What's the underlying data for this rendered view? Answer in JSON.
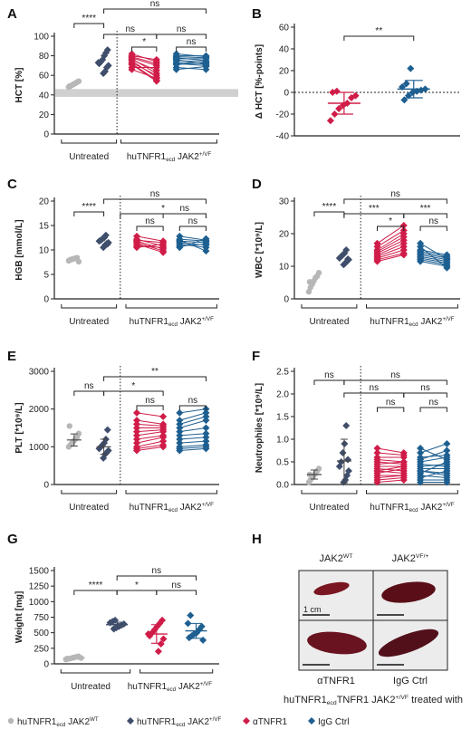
{
  "colors": {
    "gray": "#b7b7b7",
    "navy": "#3f4e6b",
    "red": "#d01c48",
    "blue": "#1e5f91",
    "shade": "#d0d0d0"
  },
  "chart_data": [
    {
      "panel": "A",
      "type": "scatter",
      "ylabel": "HCT [%]",
      "ylim": [
        0,
        100
      ],
      "yticks": [
        0,
        20,
        40,
        60,
        80,
        100
      ],
      "groups": [
        {
          "name": "huTNFR1ecd JAK2WT",
          "values": [
            48,
            49,
            50,
            51,
            52,
            53,
            54,
            49
          ]
        },
        {
          "name": "huTNFR1ecd JAK2+/VF",
          "values": [
            62,
            64,
            68,
            70,
            72,
            74,
            76,
            80,
            83,
            86,
            73
          ]
        }
      ],
      "paired": {
        "before": [
          80,
          79,
          78,
          77,
          75,
          73,
          72,
          71,
          68,
          66,
          82,
          76
        ],
        "red_after": [
          76,
          72,
          70,
          62,
          58,
          60,
          55,
          54,
          68,
          57,
          74,
          65
        ],
        "blue_after": [
          80,
          78,
          75,
          77,
          74,
          72,
          70,
          73,
          66,
          69,
          79,
          71
        ]
      },
      "reference_band": [
        38,
        46
      ],
      "significance": [
        "****",
        "ns",
        "ns",
        "ns",
        "*",
        "ns"
      ],
      "group_labels": [
        "Untreated",
        "huTNFR1",
        "ecd",
        "JAK2",
        "+/VF"
      ]
    },
    {
      "panel": "B",
      "type": "scatter",
      "ylabel": "Δ HCT [%-points]",
      "ylim": [
        -40,
        60
      ],
      "yticks": [
        -40,
        -20,
        0,
        20,
        40,
        60
      ],
      "groups": [
        {
          "name": "αTNFR1",
          "values": [
            -26,
            -20,
            -15,
            -12,
            -10,
            -5,
            -3,
            0,
            1
          ],
          "mean": -10,
          "sd": 10
        },
        {
          "name": "IgG Ctrl",
          "values": [
            -7,
            -3,
            0,
            1,
            2,
            3,
            5,
            8,
            22
          ],
          "mean": 3,
          "sd": 8
        }
      ],
      "significance": [
        "**"
      ]
    },
    {
      "panel": "C",
      "type": "scatter",
      "ylabel": "HGB [mmol/L]",
      "ylim": [
        0,
        20
      ],
      "yticks": [
        0,
        5,
        10,
        15,
        20
      ],
      "groups": [
        {
          "name": "huTNFR1ecd JAK2WT",
          "values": [
            7.8,
            8.0,
            8.1,
            8.2,
            8.3,
            8.4,
            7.6,
            7.9
          ]
        },
        {
          "name": "huTNFR1ecd JAK2+/VF",
          "values": [
            10.5,
            11.0,
            11.3,
            11.5,
            11.8,
            12.0,
            12.3,
            12.5,
            13.0,
            11.2
          ]
        }
      ],
      "paired": {
        "before": [
          12.8,
          12.2,
          11.8,
          11.5,
          11.2,
          10.8,
          10.5,
          12.0
        ],
        "red_after": [
          11.8,
          10.8,
          10.2,
          9.8,
          9.5,
          10.5,
          11.2,
          11.5
        ],
        "blue_after": [
          12.0,
          11.8,
          11.5,
          11.0,
          10.5,
          11.2,
          12.3,
          9.8
        ]
      },
      "significance": [
        "****",
        "ns",
        "*",
        "ns",
        "ns",
        "ns"
      ],
      "group_labels": [
        "Untreated",
        "huTNFR1",
        "ecd",
        "JAK2",
        "+/VF"
      ]
    },
    {
      "panel": "D",
      "type": "scatter",
      "ylabel": "WBC [*10⁹/L]",
      "ylim": [
        0,
        30
      ],
      "yticks": [
        0,
        10,
        20,
        30
      ],
      "groups": [
        {
          "name": "huTNFR1ecd JAK2WT",
          "values": [
            2.2,
            3.5,
            4.5,
            5.5,
            6.5,
            7.0,
            8.0,
            5.2
          ]
        },
        {
          "name": "huTNFR1ecd JAK2+/VF",
          "values": [
            10.5,
            11.0,
            11.5,
            12.0,
            12.5,
            13.0,
            13.5,
            14.0,
            15.0,
            12.2
          ]
        }
      ],
      "paired": {
        "before": [
          11.5,
          12.0,
          12.5,
          13.0,
          13.5,
          14.0,
          14.5,
          15.0,
          16.0,
          17.0
        ],
        "red_after": [
          13.5,
          14.0,
          15.0,
          16.0,
          17.0,
          18.0,
          19.0,
          20.0,
          21.0,
          22.5
        ],
        "blue_after": [
          10.0,
          10.5,
          11.0,
          11.5,
          12.0,
          12.5,
          13.0,
          13.5,
          9.5,
          12.2
        ]
      },
      "significance": [
        "****",
        "ns",
        "***",
        "***",
        "*",
        "ns"
      ],
      "group_labels": [
        "Untreated",
        "huTNFR1",
        "ecd",
        "JAK2",
        "+/VF"
      ]
    },
    {
      "panel": "E",
      "type": "scatter",
      "ylabel": "PLT [*10⁹/L]",
      "ylim": [
        0,
        3000
      ],
      "yticks": [
        0,
        1000,
        2000,
        3000
      ],
      "groups": [
        {
          "name": "huTNFR1ecd JAK2WT",
          "values": [
            1000,
            1050,
            1100,
            1150,
            1200,
            1250,
            1350,
            1550
          ],
          "mean": 1180,
          "sd": 160
        },
        {
          "name": "huTNFR1ecd JAK2+/VF",
          "values": [
            700,
            800,
            850,
            900,
            950,
            1000,
            1050,
            1100,
            1200,
            1450
          ],
          "mean": 1000,
          "sd": 200
        }
      ],
      "paired": {
        "before": [
          1900,
          1700,
          1500,
          1400,
          1300,
          1200,
          1100,
          1000,
          950,
          900,
          1600
        ],
        "red_after": [
          1800,
          1600,
          1500,
          1450,
          1400,
          1300,
          1250,
          1150,
          1050,
          1000,
          1550
        ],
        "blue_after": [
          2000,
          1900,
          1700,
          1500,
          1350,
          1250,
          1150,
          1050,
          1000,
          950,
          1800
        ]
      },
      "significance": [
        "ns",
        "**",
        "*",
        "ns",
        "ns"
      ],
      "group_labels": [
        "Untreated",
        "huTNFR1",
        "ecd",
        "JAK2",
        "+/VF"
      ]
    },
    {
      "panel": "F",
      "type": "scatter",
      "ylabel": "Neutrophiles [*10⁹/L]",
      "ylim": [
        0,
        2.5
      ],
      "yticks": [
        0.0,
        0.5,
        1.0,
        1.5,
        2.0,
        2.5
      ],
      "yticklabels": [
        "0.0",
        "0.5",
        "1.0",
        "1.5",
        "2.0",
        "2.5"
      ],
      "groups": [
        {
          "name": "huTNFR1ecd JAK2WT",
          "values": [
            0.05,
            0.1,
            0.15,
            0.2,
            0.25,
            0.3,
            0.35,
            0.22
          ],
          "mean": 0.22,
          "sd": 0.1
        },
        {
          "name": "huTNFR1ecd JAK2+/VF",
          "values": [
            0.05,
            0.1,
            0.2,
            0.3,
            0.4,
            0.5,
            0.7,
            0.9,
            1.3,
            0.55
          ],
          "mean": 0.52,
          "sd": 0.48
        }
      ],
      "paired": {
        "before": [
          0.05,
          0.1,
          0.2,
          0.3,
          0.35,
          0.4,
          0.5,
          0.55,
          0.7,
          0.15,
          0.25,
          0.45,
          0.6,
          0.8,
          0.3
        ],
        "red_after": [
          0.1,
          0.15,
          0.2,
          0.25,
          0.3,
          0.4,
          0.45,
          0.5,
          0.65,
          0.2,
          0.35,
          0.5,
          0.6,
          0.7,
          0.4
        ],
        "blue_after": [
          0.05,
          0.1,
          0.15,
          0.25,
          0.35,
          0.45,
          0.6,
          0.75,
          0.9,
          0.3,
          0.5,
          0.4,
          0.65,
          0.55,
          0.2
        ]
      },
      "significance": [
        "ns",
        "ns",
        "ns",
        "ns",
        "ns",
        "ns"
      ],
      "group_labels": [
        "Untreated",
        "huTNFR1",
        "ecd",
        "JAK2",
        "+/VF"
      ]
    },
    {
      "panel": "G",
      "type": "scatter",
      "ylabel": "Weight [mg]",
      "ylim": [
        0,
        1500
      ],
      "yticks": [
        0,
        250,
        500,
        750,
        1000,
        1250,
        1500
      ],
      "groups": [
        {
          "name": "huTNFR1ecd JAK2WT",
          "values": [
            70,
            80,
            90,
            100,
            110,
            120,
            95,
            85
          ],
          "mean": 95,
          "sd": 20
        },
        {
          "name": "huTNFR1ecd JAK2+/VF",
          "values": [
            560,
            580,
            600,
            620,
            640,
            660,
            680,
            700,
            610
          ],
          "mean": 630,
          "sd": 40
        },
        {
          "name": "αTNFR1",
          "values": [
            200,
            320,
            400,
            450,
            500,
            550,
            600,
            650,
            700,
            480
          ],
          "mean": 480,
          "sd": 150
        },
        {
          "name": "IgG Ctrl",
          "values": [
            380,
            420,
            450,
            480,
            500,
            550,
            600,
            650,
            780
          ],
          "mean": 530,
          "sd": 120
        }
      ],
      "significance": [
        "****",
        "ns",
        "*",
        "ns"
      ],
      "group_labels": [
        "Untreated",
        "huTNFR1",
        "ecd",
        "JAK2",
        "+/VF"
      ]
    }
  ],
  "panels": {
    "A": "A",
    "B": "B",
    "C": "C",
    "D": "D",
    "E": "E",
    "F": "F",
    "G": "G",
    "H": "H"
  },
  "panel_h": {
    "col_wt": "JAK2",
    "col_wt_sup": "WT",
    "col_vf": "JAK2",
    "col_vf_sup": "VF/+",
    "scale": "1 cm",
    "row_a": "αTNFR1",
    "row_b": "IgG Ctrl",
    "caption_main": "huTNFR1",
    "caption_sub": "ecd",
    "caption_tail": "TNFR1 JAK2",
    "caption_sup": "+/VF",
    "caption_end": "treated with"
  },
  "legend": [
    {
      "marker": "circle",
      "color": "gray",
      "label": "huTNFR1",
      "sub": "ecd",
      "tail": "JAK2",
      "sup": "WT"
    },
    {
      "marker": "diamond",
      "color": "navy",
      "label": "huTNFR1",
      "sub": "ecd",
      "tail": "JAK2",
      "sup": "+/VF"
    },
    {
      "marker": "diamond",
      "color": "red",
      "label": "αTNFR1",
      "sub": "",
      "tail": "",
      "sup": ""
    },
    {
      "marker": "diamond",
      "color": "blue",
      "label": "IgG  Ctrl",
      "sub": "",
      "tail": "",
      "sup": ""
    }
  ]
}
